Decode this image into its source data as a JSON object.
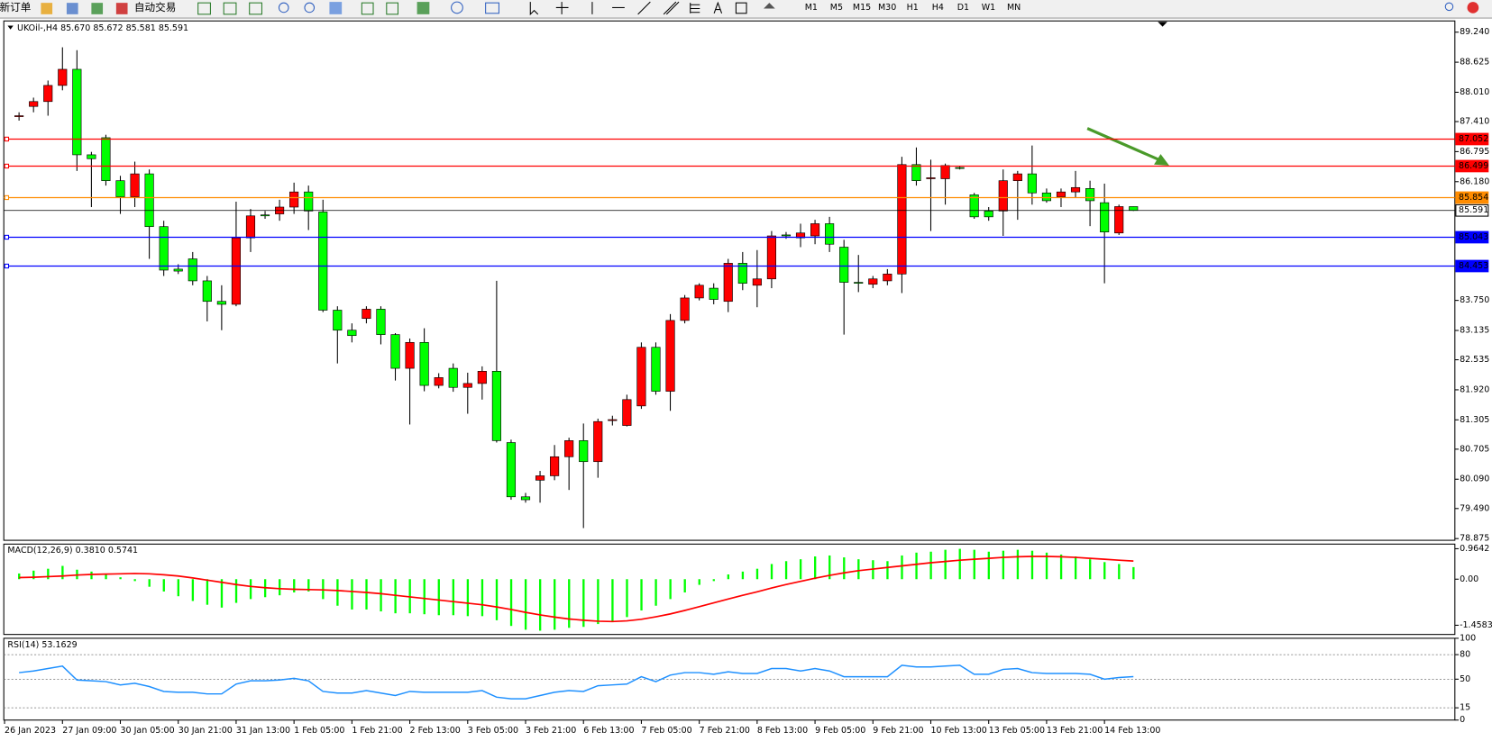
{
  "toolbar": {
    "new_order": "新订单",
    "auto_trading": "自动交易",
    "timeframes": [
      "M1",
      "M5",
      "M15",
      "M30",
      "H1",
      "H4",
      "D1",
      "W1",
      "MN"
    ]
  },
  "chart_data": [
    {
      "type": "candlestick",
      "title": "UKOil-,H4  85.670 85.672 85.581 85.591",
      "open": [
        87.51,
        87.72,
        87.82,
        88.15,
        88.48,
        86.73,
        87.08,
        86.2,
        85.87,
        86.34,
        85.26,
        84.39,
        84.6,
        84.15,
        83.73,
        83.67,
        85.03,
        85.5,
        85.52,
        85.66,
        85.97,
        85.56,
        83.55,
        83.14,
        83.38,
        83.57,
        83.05,
        82.36,
        82.89,
        82.01,
        82.36,
        81.97,
        82.05,
        82.3,
        80.84,
        79.73,
        80.07,
        80.16,
        80.55,
        80.88,
        80.45,
        81.29,
        81.19,
        81.59,
        82.79,
        81.89,
        83.34,
        83.8,
        84.0,
        83.73,
        84.51,
        84.06,
        84.19,
        85.09,
        85.03,
        85.07,
        85.32,
        84.84,
        84.12,
        84.08,
        84.15,
        84.29,
        86.53,
        86.24,
        86.24,
        86.47,
        85.91,
        85.58,
        85.58,
        86.2,
        86.34,
        85.95,
        85.87,
        85.97,
        86.04,
        85.75,
        85.13,
        85.67
      ],
      "high": [
        87.6,
        87.9,
        88.25,
        88.93,
        88.87,
        86.79,
        87.14,
        86.3,
        86.59,
        86.43,
        85.38,
        84.49,
        84.74,
        84.25,
        84.06,
        85.77,
        85.62,
        85.58,
        85.81,
        86.16,
        86.1,
        85.81,
        83.63,
        83.28,
        83.63,
        83.63,
        83.08,
        82.97,
        83.18,
        82.26,
        82.46,
        82.27,
        82.4,
        84.15,
        80.9,
        79.81,
        80.26,
        80.79,
        80.94,
        81.23,
        81.33,
        81.39,
        81.82,
        82.89,
        82.89,
        83.47,
        83.86,
        84.1,
        84.1,
        84.6,
        84.74,
        84.78,
        85.17,
        85.15,
        85.32,
        85.4,
        85.46,
        84.99,
        84.68,
        84.25,
        84.39,
        86.69,
        86.88,
        86.63,
        86.55,
        86.49,
        85.95,
        85.66,
        86.43,
        86.4,
        86.92,
        86.04,
        86.04,
        86.4,
        86.2,
        86.14,
        85.71,
        85.672
      ],
      "low": [
        87.43,
        87.6,
        87.53,
        88.05,
        86.4,
        85.66,
        86.1,
        85.52,
        85.66,
        84.6,
        84.25,
        84.29,
        84.06,
        83.32,
        83.14,
        83.63,
        84.74,
        85.42,
        85.38,
        85.52,
        85.19,
        83.51,
        82.46,
        82.89,
        83.28,
        82.85,
        82.11,
        81.21,
        81.89,
        81.95,
        81.88,
        81.43,
        81.72,
        80.84,
        79.67,
        79.61,
        79.61,
        80.07,
        79.87,
        79.09,
        80.12,
        81.19,
        81.17,
        81.53,
        81.82,
        81.49,
        83.28,
        83.75,
        83.67,
        83.51,
        83.96,
        83.61,
        84.0,
        85.01,
        84.84,
        84.9,
        84.74,
        83.05,
        83.92,
        84.0,
        84.06,
        83.9,
        86.1,
        85.17,
        85.71,
        86.43,
        85.42,
        85.38,
        85.07,
        85.4,
        85.71,
        85.75,
        85.66,
        85.85,
        85.27,
        84.1,
        85.09,
        85.581
      ],
      "close": [
        87.53,
        87.82,
        88.15,
        88.48,
        86.73,
        86.65,
        86.2,
        85.87,
        86.34,
        85.26,
        84.37,
        84.35,
        84.15,
        83.73,
        83.67,
        85.03,
        85.48,
        85.48,
        85.66,
        85.97,
        85.58,
        83.55,
        83.14,
        83.03,
        83.57,
        83.05,
        82.36,
        82.89,
        82.01,
        82.17,
        81.97,
        82.05,
        82.3,
        80.88,
        79.73,
        79.67,
        80.16,
        80.55,
        80.88,
        80.45,
        81.27,
        81.31,
        81.72,
        82.79,
        81.89,
        83.34,
        83.8,
        84.06,
        83.77,
        84.51,
        84.1,
        84.19,
        85.07,
        85.07,
        85.13,
        85.32,
        84.9,
        84.12,
        84.1,
        84.19,
        84.29,
        86.53,
        86.2,
        86.26,
        86.51,
        86.45,
        85.46,
        85.46,
        86.2,
        86.34,
        85.95,
        85.79,
        85.97,
        86.06,
        85.79,
        85.15,
        85.67,
        85.591
      ],
      "bull_color": "#ff0000",
      "bear_color": "#00ff00",
      "ylim": [
        78.84,
        89.47
      ],
      "yticks": [
        {
          "value": 89.24,
          "label": "89.240"
        },
        88.625,
        {
          "value": 88.01,
          "label": "88.010"
        },
        {
          "value": 87.41,
          "label": "87.410"
        },
        86.795,
        {
          "value": 86.18,
          "label": "86.180"
        },
        {
          "value": 83.75,
          "label": "83.750"
        },
        83.135,
        82.535,
        {
          "value": 81.92,
          "label": "81.920"
        },
        81.305,
        80.705,
        {
          "value": 80.09,
          "label": "80.090"
        },
        {
          "value": 79.49,
          "label": "79.490"
        },
        78.875
      ],
      "x_labels": [
        "26 Jan 2023",
        "27 Jan 09:00",
        "30 Jan 05:00",
        "30 Jan 21:00",
        "31 Jan 13:00",
        "1 Feb 05:00",
        "1 Feb 21:00",
        "2 Feb 13:00",
        "3 Feb 05:00",
        "3 Feb 21:00",
        "6 Feb 13:00",
        "7 Feb 05:00",
        "7 Feb 21:00",
        "8 Feb 13:00",
        "9 Feb 05:00",
        "9 Feb 21:00",
        "10 Feb 13:00",
        "13 Feb 05:00",
        "13 Feb 21:00",
        "14 Feb 13:00"
      ],
      "price_lines": [
        {
          "value": 87.052,
          "color": "#ff0000"
        },
        {
          "value": 86.499,
          "color": "#ff0000"
        },
        {
          "value": 85.854,
          "color": "#ff8c00"
        },
        {
          "value": 85.043,
          "color": "#0000ff"
        },
        {
          "value": 84.453,
          "color": "#0000ff"
        }
      ],
      "current_price": {
        "value": 85.591,
        "color": "#000000"
      }
    },
    {
      "type": "macd",
      "title": "MACD(12,26,9) 0.3810 0.5741",
      "histogram": [
        0.18,
        0.27,
        0.33,
        0.42,
        0.3,
        0.24,
        0.15,
        0.06,
        -0.06,
        -0.24,
        -0.39,
        -0.54,
        -0.69,
        -0.81,
        -0.9,
        -0.75,
        -0.63,
        -0.57,
        -0.51,
        -0.42,
        -0.39,
        -0.63,
        -0.84,
        -0.96,
        -0.96,
        -1.02,
        -1.08,
        -1.08,
        -1.11,
        -1.14,
        -1.14,
        -1.17,
        -1.17,
        -1.3,
        -1.48,
        -1.6,
        -1.63,
        -1.6,
        -1.54,
        -1.51,
        -1.42,
        -1.33,
        -1.2,
        -0.99,
        -0.84,
        -0.63,
        -0.42,
        -0.18,
        -0.06,
        0.15,
        0.24,
        0.33,
        0.48,
        0.57,
        0.63,
        0.72,
        0.75,
        0.69,
        0.63,
        0.6,
        0.57,
        0.75,
        0.84,
        0.87,
        0.93,
        0.96,
        0.93,
        0.87,
        0.9,
        0.93,
        0.9,
        0.84,
        0.78,
        0.72,
        0.63,
        0.54,
        0.48,
        0.381
      ],
      "signal": [
        0.05,
        0.06,
        0.08,
        0.1,
        0.13,
        0.15,
        0.16,
        0.17,
        0.18,
        0.17,
        0.14,
        0.1,
        0.04,
        -0.03,
        -0.1,
        -0.17,
        -0.23,
        -0.27,
        -0.3,
        -0.32,
        -0.33,
        -0.34,
        -0.36,
        -0.39,
        -0.42,
        -0.46,
        -0.51,
        -0.56,
        -0.61,
        -0.66,
        -0.71,
        -0.76,
        -0.81,
        -0.88,
        -0.96,
        -1.05,
        -1.13,
        -1.2,
        -1.26,
        -1.3,
        -1.33,
        -1.34,
        -1.32,
        -1.27,
        -1.19,
        -1.1,
        -0.99,
        -0.87,
        -0.75,
        -0.63,
        -0.51,
        -0.4,
        -0.28,
        -0.17,
        -0.07,
        0.03,
        0.12,
        0.2,
        0.27,
        0.32,
        0.37,
        0.42,
        0.47,
        0.52,
        0.56,
        0.6,
        0.63,
        0.66,
        0.69,
        0.71,
        0.72,
        0.72,
        0.71,
        0.69,
        0.66,
        0.63,
        0.6,
        0.5741
      ],
      "histogram_color": "#00ff00",
      "signal_color": "#ff0000",
      "ylim": [
        -1.75,
        1.11
      ],
      "yticks": [
        0.9642,
        {
          "value": 0,
          "label": "0.00"
        },
        -1.4583
      ]
    },
    {
      "type": "line",
      "title": "RSI(14) 53.1629",
      "values": [
        58,
        60,
        63,
        66,
        49,
        48,
        47,
        43,
        45,
        41,
        35,
        34,
        34,
        32,
        32,
        44,
        48,
        48,
        49,
        51,
        48,
        35,
        33,
        33,
        36,
        33,
        30,
        35,
        34,
        34,
        34,
        34,
        36,
        28,
        26,
        26,
        30,
        34,
        36,
        35,
        42,
        43,
        44,
        53,
        47,
        55,
        58,
        58,
        56,
        59,
        57,
        57,
        63,
        63,
        60,
        63,
        60,
        53,
        53,
        53,
        53,
        67,
        65,
        65,
        66,
        67,
        56,
        56,
        62,
        63,
        58,
        57,
        57,
        57,
        56,
        50,
        52,
        53.1629
      ],
      "color": "#1e90ff",
      "ylim": [
        0,
        100
      ],
      "yticks": [
        100,
        80,
        50,
        15,
        0
      ],
      "levels": [
        80,
        50,
        15
      ]
    }
  ]
}
